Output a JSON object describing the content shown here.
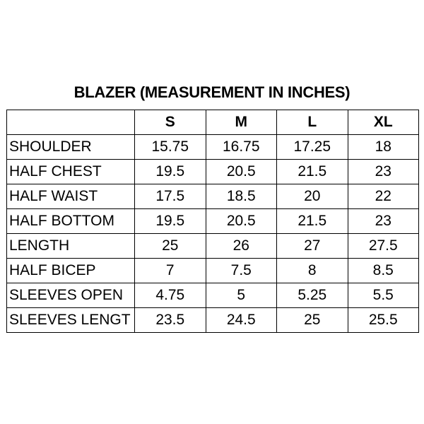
{
  "title": "BLAZER (MEASUREMENT IN INCHES)",
  "columns": [
    "",
    "S",
    "M",
    "L",
    "XL"
  ],
  "rows": [
    {
      "label": "SHOULDER",
      "values": [
        "15.75",
        "16.75",
        "17.25",
        "18"
      ]
    },
    {
      "label": "HALF CHEST",
      "values": [
        "19.5",
        "20.5",
        "21.5",
        "23"
      ]
    },
    {
      "label": "HALF WAIST",
      "values": [
        "17.5",
        "18.5",
        "20",
        "22"
      ]
    },
    {
      "label": "HALF BOTTOM",
      "values": [
        "19.5",
        "20.5",
        "21.5",
        "23"
      ]
    },
    {
      "label": "LENGTH",
      "values": [
        "25",
        "26",
        "27",
        "27.5"
      ]
    },
    {
      "label": "HALF BICEP",
      "values": [
        "7",
        "7.5",
        "8",
        "8.5"
      ]
    },
    {
      "label": "SLEEVES OPEN",
      "values": [
        "4.75",
        "5",
        "5.25",
        "5.5"
      ]
    },
    {
      "label": "SLEEVES LENGT",
      "values": [
        "23.5",
        "24.5",
        "25",
        "25.5"
      ]
    }
  ]
}
